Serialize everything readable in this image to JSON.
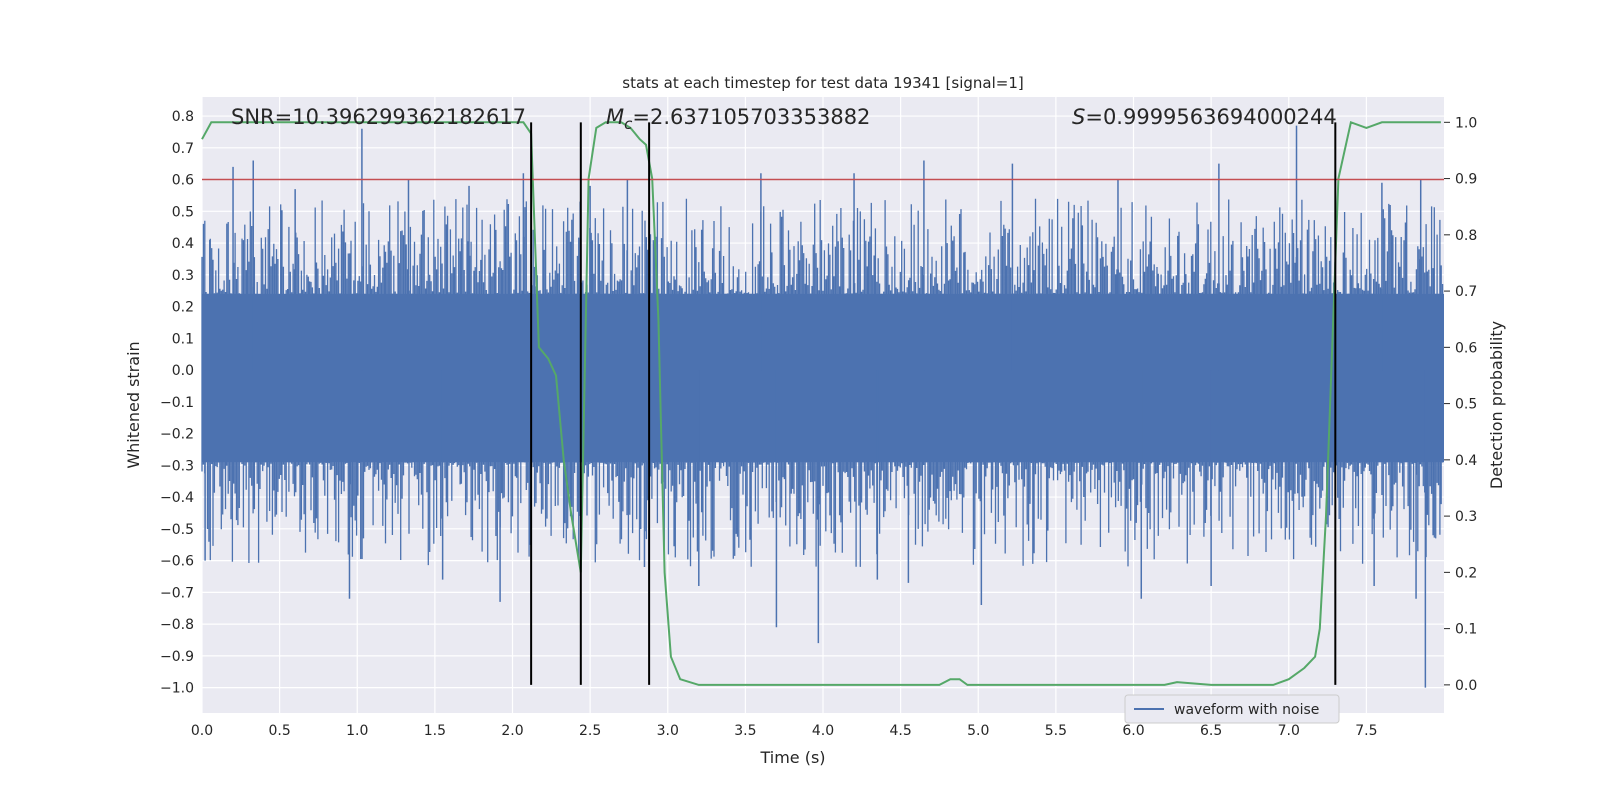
{
  "chart_data": {
    "type": "line",
    "title": "stats at each timestep for test data 19341 [signal=1]",
    "xlabel": "Time (s)",
    "ylabel_left": "Whitened strain",
    "ylabel_right": "Detection probability",
    "xlim": [
      0.0,
      8.0
    ],
    "ylim_left": [
      -1.08,
      0.86
    ],
    "ylim_right": [
      -0.05,
      1.045
    ],
    "x_ticks": [
      "0.0",
      "0.5",
      "1.0",
      "1.5",
      "2.0",
      "2.5",
      "3.0",
      "3.5",
      "4.0",
      "4.5",
      "5.0",
      "5.5",
      "6.0",
      "6.5",
      "7.0",
      "7.5"
    ],
    "x_tick_values": [
      0,
      0.5,
      1,
      1.5,
      2,
      2.5,
      3,
      3.5,
      4,
      4.5,
      5,
      5.5,
      6,
      6.5,
      7,
      7.5
    ],
    "y_left_ticks": [
      "0.8",
      "0.7",
      "0.6",
      "0.5",
      "0.4",
      "0.3",
      "0.2",
      "0.1",
      "0.0",
      "-0.1",
      "-0.2",
      "-0.3",
      "-0.4",
      "-0.5",
      "-0.6",
      "-0.7",
      "-0.8",
      "-0.9",
      "-1.0"
    ],
    "y_left_tick_values": [
      0.8,
      0.7,
      0.6,
      0.5,
      0.4,
      0.3,
      0.2,
      0.1,
      0.0,
      -0.1,
      -0.2,
      -0.3,
      -0.4,
      -0.5,
      -0.6,
      -0.7,
      -0.8,
      -0.9,
      -1.0
    ],
    "y_right_ticks": [
      "1.0",
      "0.9",
      "0.8",
      "0.7",
      "0.6",
      "0.5",
      "0.4",
      "0.3",
      "0.2",
      "0.1",
      "0.0"
    ],
    "y_right_tick_values": [
      1.0,
      0.9,
      0.8,
      0.7,
      0.6,
      0.5,
      0.4,
      0.3,
      0.2,
      0.1,
      0.0
    ],
    "annotations": {
      "snr": "SNR=10.396299362182617",
      "mc_symbol": "M",
      "mc_sub": "c",
      "mc_value": "=2.637105703353882",
      "s_symbol": "S",
      "s_value": "=0.9999563694000244"
    },
    "threshold_left": 0.6,
    "vertical_lines_x": [
      2.12,
      2.44,
      2.88,
      7.3
    ],
    "legend": {
      "label": "waveform with noise",
      "position": "lower-right"
    },
    "waveform": {
      "name": "waveform with noise",
      "x_range": [
        0.0,
        8.0
      ],
      "core_range": [
        -0.29,
        0.24
      ],
      "peaks_pos": [
        [
          0.05,
          0.41
        ],
        [
          0.2,
          0.64
        ],
        [
          0.33,
          0.66
        ],
        [
          0.6,
          0.57
        ],
        [
          1.03,
          0.76
        ],
        [
          1.33,
          0.6
        ],
        [
          1.72,
          0.58
        ],
        [
          2.07,
          0.62
        ],
        [
          2.5,
          0.58
        ],
        [
          2.74,
          0.6
        ],
        [
          3.6,
          0.62
        ],
        [
          4.2,
          0.62
        ],
        [
          4.65,
          0.66
        ],
        [
          5.22,
          0.65
        ],
        [
          5.9,
          0.6
        ],
        [
          6.55,
          0.65
        ],
        [
          7.05,
          0.77
        ],
        [
          7.6,
          0.59
        ],
        [
          7.85,
          0.6
        ]
      ],
      "peaks_neg": [
        [
          0.02,
          -0.6
        ],
        [
          0.95,
          -0.72
        ],
        [
          1.55,
          -0.66
        ],
        [
          1.92,
          -0.73
        ],
        [
          2.85,
          -0.62
        ],
        [
          3.2,
          -0.68
        ],
        [
          3.7,
          -0.81
        ],
        [
          3.97,
          -0.86
        ],
        [
          4.35,
          -0.66
        ],
        [
          4.55,
          -0.67
        ],
        [
          5.02,
          -0.74
        ],
        [
          6.05,
          -0.72
        ],
        [
          6.5,
          -0.68
        ],
        [
          7.55,
          -0.68
        ],
        [
          7.82,
          -0.72
        ],
        [
          7.88,
          -1.0
        ]
      ]
    },
    "probability": {
      "name": "detection probability",
      "x": [
        0.0,
        0.06,
        0.12,
        0.5,
        1.0,
        1.5,
        2.0,
        2.07,
        2.12,
        2.17,
        2.23,
        2.28,
        2.33,
        2.38,
        2.44,
        2.49,
        2.54,
        2.6,
        2.7,
        2.76,
        2.82,
        2.86,
        2.9,
        2.94,
        2.98,
        3.02,
        3.08,
        3.2,
        3.5,
        3.7,
        3.9,
        4.2,
        4.6,
        4.75,
        4.82,
        4.88,
        4.93,
        5.1,
        5.5,
        6.0,
        6.2,
        6.28,
        6.5,
        6.9,
        7.0,
        7.1,
        7.17,
        7.2,
        7.24,
        7.28,
        7.32,
        7.4,
        7.5,
        7.6,
        7.8,
        7.98
      ],
      "y": [
        0.97,
        1.0,
        1.0,
        1.0,
        1.0,
        1.0,
        1.0,
        1.0,
        0.98,
        0.6,
        0.58,
        0.55,
        0.4,
        0.3,
        0.2,
        0.9,
        0.99,
        1.0,
        1.0,
        0.99,
        0.97,
        0.96,
        0.9,
        0.65,
        0.2,
        0.05,
        0.01,
        0.0,
        0.0,
        0.0,
        0.0,
        0.0,
        0.0,
        0.0,
        0.01,
        0.01,
        0.0,
        0.0,
        0.0,
        0.0,
        0.0,
        0.005,
        0.0,
        0.0,
        0.01,
        0.03,
        0.05,
        0.1,
        0.3,
        0.6,
        0.9,
        1.0,
        0.99,
        1.0,
        1.0,
        1.0
      ]
    },
    "colors": {
      "background": "#eaeaf2",
      "grid": "#ffffff",
      "waveform": "#4c72b0",
      "probability": "#55a868",
      "threshold": "#c44e52",
      "vline": "#000000"
    }
  }
}
